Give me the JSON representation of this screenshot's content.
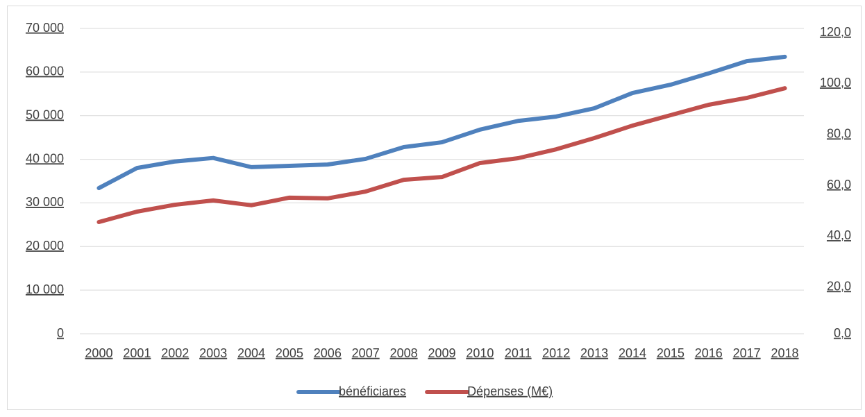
{
  "chart_data": {
    "type": "line",
    "categories": [
      "2000",
      "2001",
      "2002",
      "2003",
      "2004",
      "2005",
      "2006",
      "2007",
      "2008",
      "2009",
      "2010",
      "2011",
      "2012",
      "2013",
      "2014",
      "2015",
      "2016",
      "2017",
      "2018"
    ],
    "series": [
      {
        "name": "bénéficiares",
        "color": "#4f81bd",
        "values": [
          33400,
          38000,
          39500,
          40300,
          38200,
          38500,
          38800,
          40100,
          42800,
          43900,
          46800,
          48800,
          49800,
          51700,
          55200,
          57100,
          59700,
          62500,
          63500
        ]
      },
      {
        "name": "Dépenses (M€)",
        "color": "#c0504d",
        "axis": "y2",
        "values": [
          43.9,
          48.0,
          50.7,
          52.4,
          50.5,
          53.5,
          53.2,
          55.9,
          60.5,
          61.6,
          67.1,
          69.0,
          72.5,
          76.9,
          81.8,
          85.9,
          90.0,
          92.7,
          96.5
        ]
      }
    ],
    "ylim": [
      0,
      70000
    ],
    "yticks": [
      0,
      {
        "value": 10000,
        "label": "10 000"
      },
      {
        "value": 20000,
        "label": "20 000"
      },
      {
        "value": 30000,
        "label": "30 000"
      },
      {
        "value": 40000,
        "label": "40 000"
      },
      {
        "value": 50000,
        "label": "50 000"
      },
      {
        "value": 60000,
        "label": "60 000"
      },
      {
        "value": 70000,
        "label": "70 000"
      }
    ],
    "y2lim": [
      0,
      120
    ],
    "y2ticks": [
      {
        "value": 0,
        "label": "0,0"
      },
      {
        "value": 20,
        "label": "20,0"
      },
      {
        "value": 40,
        "label": "40,0"
      },
      {
        "value": 60,
        "label": "60,0"
      },
      {
        "value": 80,
        "label": "80,0"
      },
      {
        "value": 100,
        "label": "100,0"
      },
      {
        "value": 120,
        "label": "120,0"
      }
    ],
    "grid": true,
    "legend": "bottom"
  }
}
